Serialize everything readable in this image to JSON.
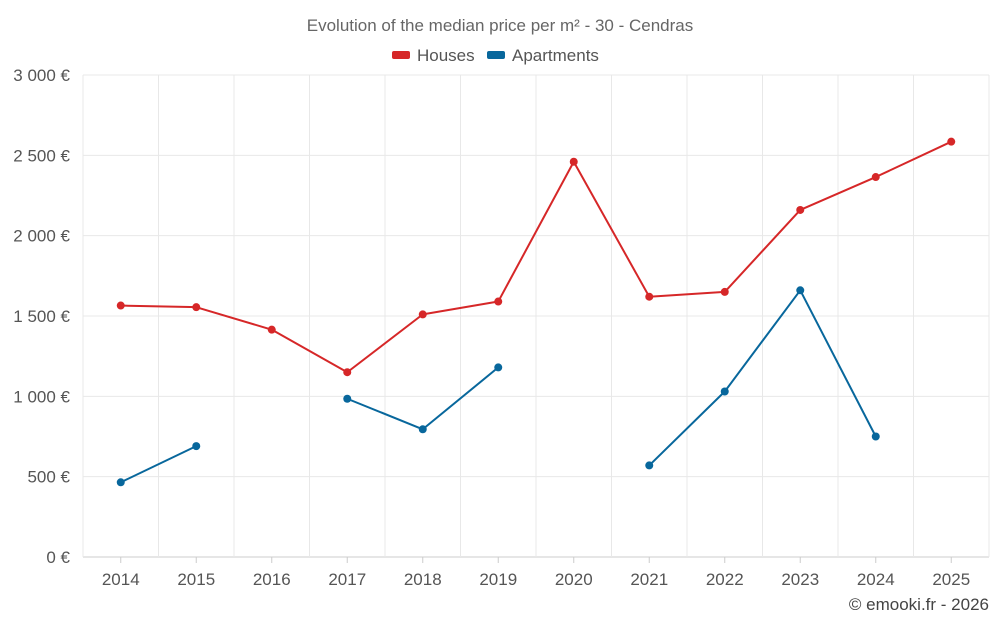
{
  "chart_data": {
    "type": "line",
    "title": "Evolution of the median price per m² - 30 - Cendras",
    "categories": [
      "2014",
      "2015",
      "2016",
      "2017",
      "2018",
      "2019",
      "2020",
      "2021",
      "2022",
      "2023",
      "2024",
      "2025"
    ],
    "y_ticks": [
      "0 €",
      "500 €",
      "1 000 €",
      "1 500 €",
      "2 000 €",
      "2 500 €",
      "3 000 €"
    ],
    "ylim": [
      0,
      3000
    ],
    "grid": true,
    "legend_position": "top-center",
    "series": [
      {
        "name": "Houses",
        "color": "#d62728",
        "values": [
          1565,
          1555,
          1415,
          1150,
          1510,
          1590,
          2460,
          1620,
          1650,
          2160,
          2365,
          2585
        ]
      },
      {
        "name": "Apartments",
        "color": "#08679c",
        "values": [
          465,
          690,
          null,
          985,
          795,
          1180,
          null,
          570,
          1030,
          1660,
          750,
          null
        ]
      }
    ],
    "footer": "© emooki.fr - 2026"
  }
}
